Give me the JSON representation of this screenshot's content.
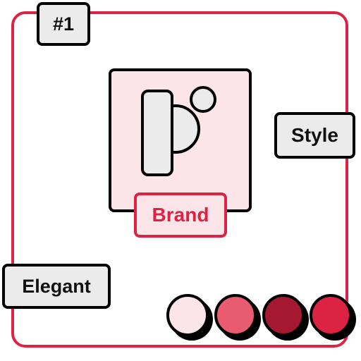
{
  "tags": {
    "number": "#1",
    "style": "Style",
    "elegant": "Elegant"
  },
  "brand": {
    "label": "Brand",
    "logo_icon": "letter-b-logo-icon"
  },
  "colors": {
    "frame": "#dc2343",
    "tag_fill": "#ebebeb",
    "tile_fill": "#fbe5e8",
    "logo_fill": "#ebebeb"
  },
  "swatches": [
    {
      "color": "#fbe5e8"
    },
    {
      "color": "#e95c6f"
    },
    {
      "color": "#a51830"
    },
    {
      "color": "#dc2343"
    }
  ]
}
